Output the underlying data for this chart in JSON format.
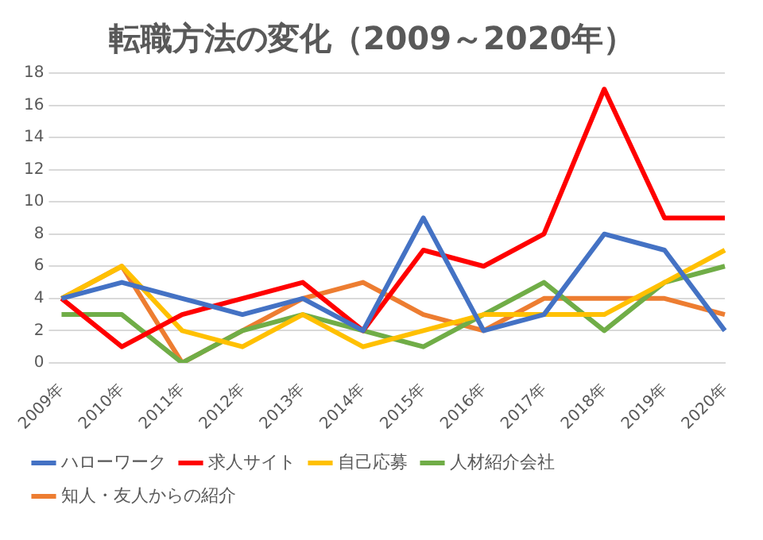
{
  "chart_data": {
    "type": "line",
    "title": "転職方法の変化（2009～2020年）",
    "categories": [
      "2009年",
      "2010年",
      "2011年",
      "2012年",
      "2013年",
      "2014年",
      "2015年",
      "2016年",
      "2017年",
      "2018年",
      "2019年",
      "2020年"
    ],
    "series": [
      {
        "name": "ハローワーク",
        "color": "#4472c4",
        "values": [
          4,
          5,
          4,
          3,
          4,
          2,
          9,
          2,
          3,
          8,
          7,
          2
        ]
      },
      {
        "name": "求人サイト",
        "color": "#ff0000",
        "values": [
          4,
          1,
          3,
          4,
          5,
          2,
          7,
          6,
          8,
          17,
          9,
          9
        ]
      },
      {
        "name": "自己応募",
        "color": "#ffc000",
        "values": [
          4,
          6,
          2,
          1,
          3,
          1,
          2,
          3,
          3,
          3,
          5,
          7
        ]
      },
      {
        "name": "人材紹介会社",
        "color": "#70ad47",
        "values": [
          3,
          3,
          0,
          2,
          3,
          2,
          1,
          3,
          5,
          2,
          5,
          6
        ]
      },
      {
        "name": "知人・友人からの紹介",
        "color": "#ed7d31",
        "values": [
          4,
          6,
          0,
          2,
          4,
          5,
          3,
          2,
          4,
          4,
          4,
          3
        ]
      }
    ],
    "ylim": [
      0,
      18
    ],
    "yticks": [
      0,
      2,
      4,
      6,
      8,
      10,
      12,
      14,
      16,
      18
    ],
    "grid": "y",
    "legend": "bottom",
    "marker": "none",
    "line_style": "solid"
  }
}
